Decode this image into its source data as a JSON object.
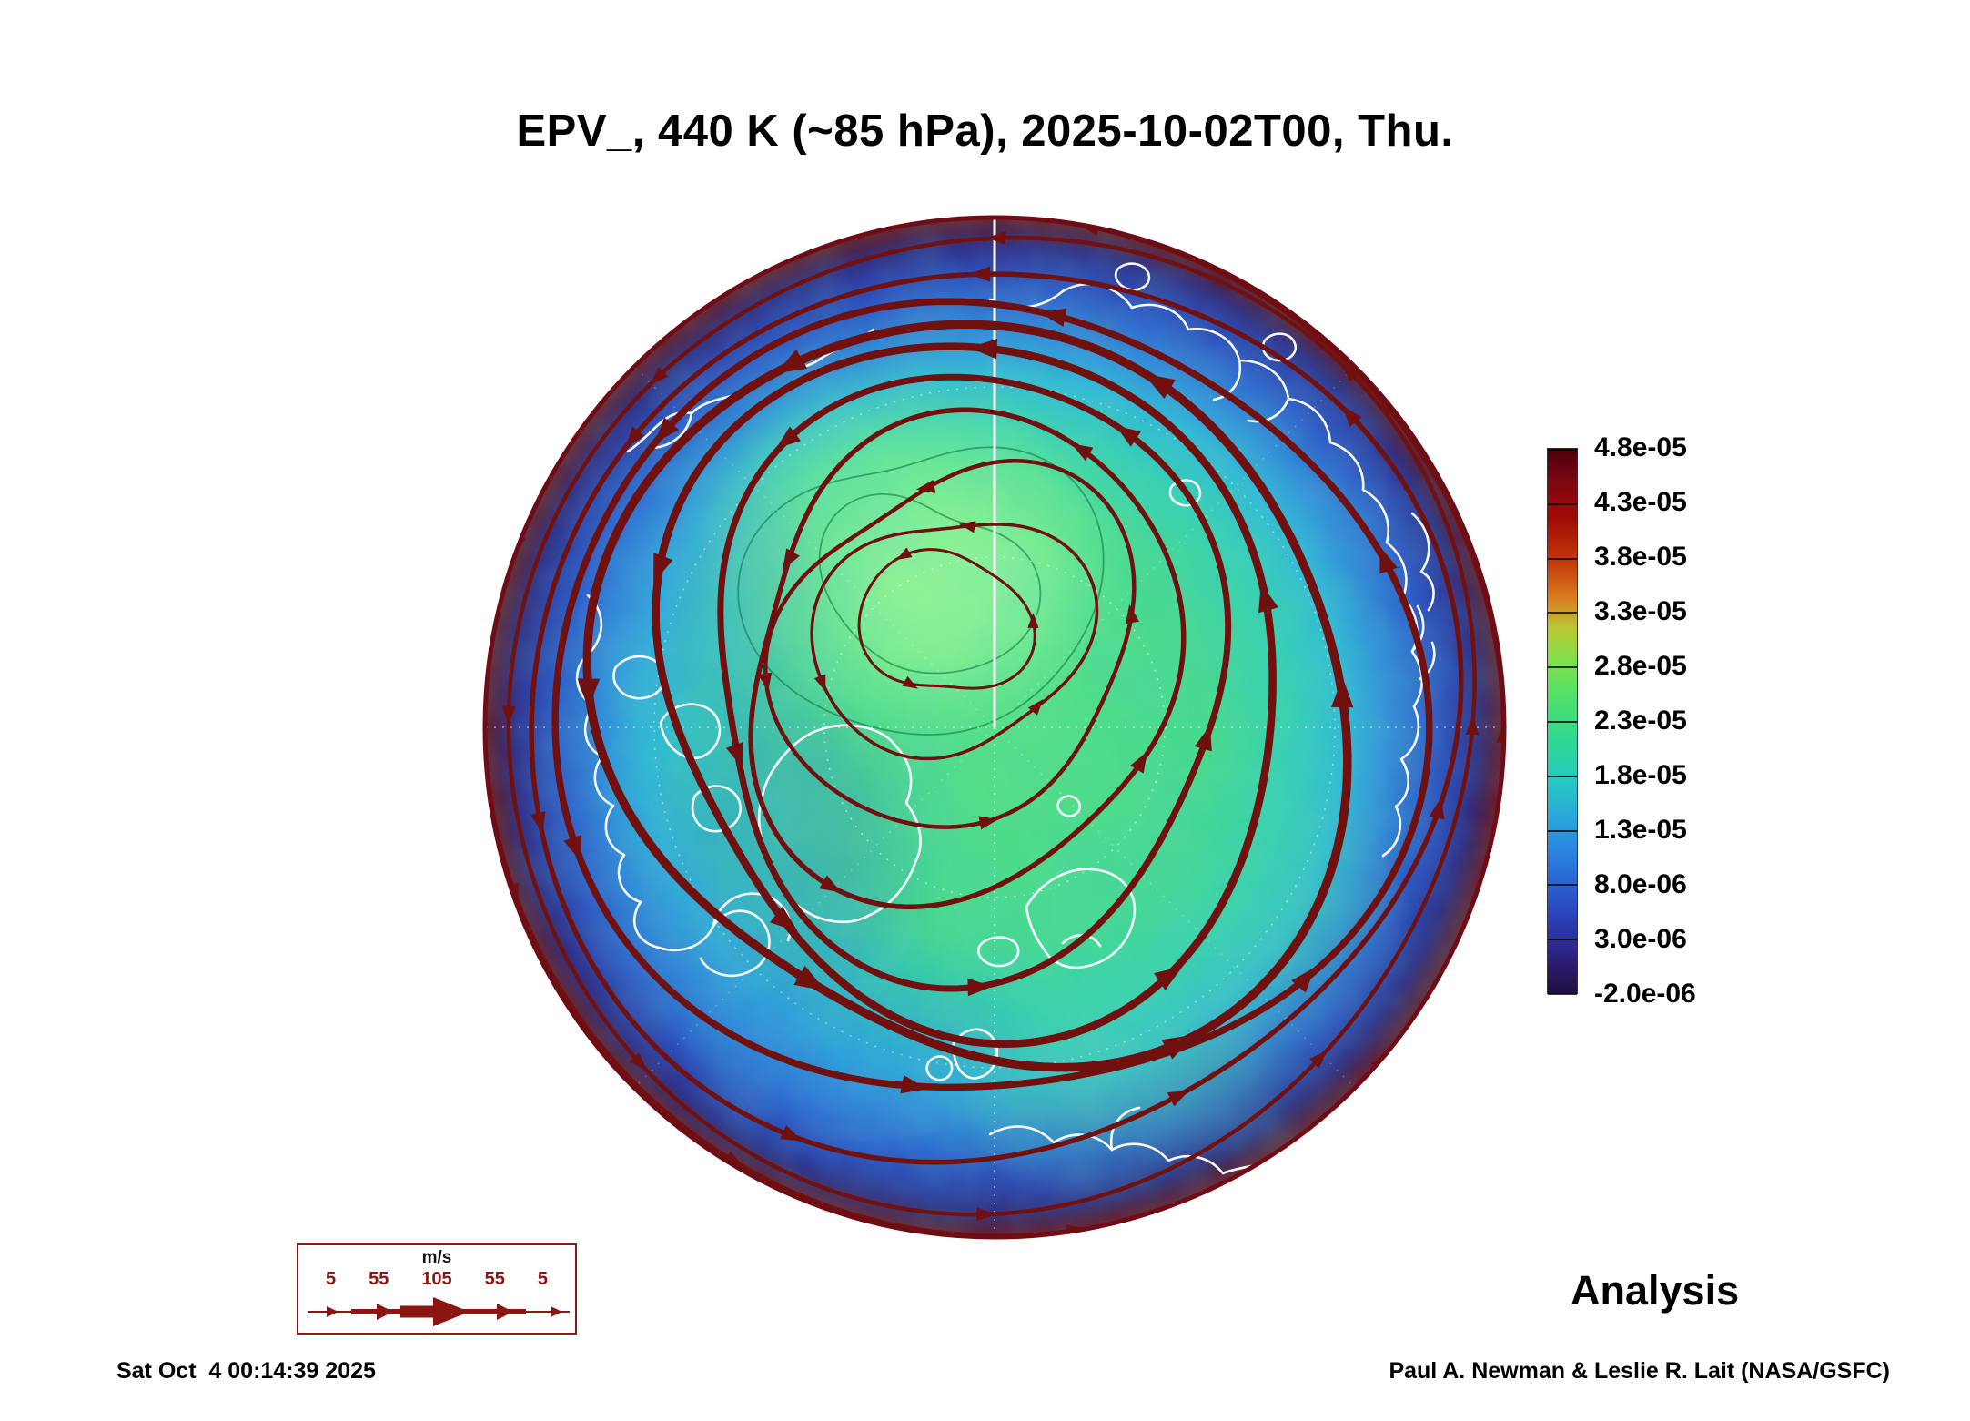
{
  "title": "EPV_, 440 K (~85 hPa), 2025-10-02T00, Thu.",
  "analysis_label": "Analysis",
  "timestamp": "Sat Oct  4 00:14:39 2025",
  "credit": "Paul A. Newman & Leslie R. Lait (NASA/GSFC)",
  "colorbar": {
    "labels": [
      "4.8e-05",
      "4.3e-05",
      "3.8e-05",
      "3.3e-05",
      "2.8e-05",
      "2.3e-05",
      "1.8e-05",
      "1.3e-05",
      "8.0e-06",
      "3.0e-06",
      "-2.0e-06"
    ]
  },
  "wind_legend": {
    "units": "m/s",
    "values": [
      "5",
      "55",
      "105",
      "55",
      "5"
    ]
  },
  "colors": {
    "streamline": "#70100f",
    "coastline": "#ffffff",
    "rim": "#6e0d16",
    "legend_red": "#8b1510"
  },
  "chart_data": {
    "type": "heatmap",
    "title": "EPV_, 440 K (~85 hPa), 2025-10-02T00, Thu.",
    "field": "Ertel potential vorticity (EPV) with wind streamlines",
    "projection": "north-polar-stereographic",
    "level": "440 K (~85 hPa)",
    "valid_time": "2025-10-02T00, Thu.",
    "run_type": "Analysis",
    "colorbar_values": [
      4.8e-05,
      4.3e-05,
      3.8e-05,
      3.3e-05,
      2.8e-05,
      2.3e-05,
      1.8e-05,
      1.3e-05,
      8e-06,
      3e-06,
      -2e-06
    ],
    "colorbar_orientation": "vertical-right",
    "wind_legend_speeds_ms": [
      5,
      55,
      105,
      55,
      5
    ],
    "wind_legend_units": "m/s",
    "generated_stamp": "Sat Oct  4 00:14:39 2025",
    "credit": "Paul A. Newman & Leslie R. Lait (NASA/GSFC)"
  }
}
